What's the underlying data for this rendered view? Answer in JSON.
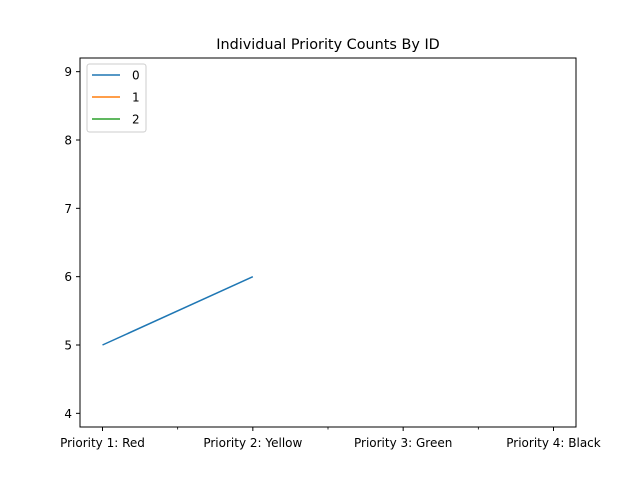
{
  "chart_data": {
    "type": "line",
    "title": "Individual Priority Counts By ID",
    "xlabel": "",
    "ylabel": "",
    "categories": [
      "Priority 1: Red",
      "Priority 2: Yellow",
      "Priority 3: Green",
      "Priority 4: Black"
    ],
    "ylim": [
      3.8,
      9.2
    ],
    "yticks": [
      4,
      5,
      6,
      7,
      8,
      9
    ],
    "grid": false,
    "legend_position": "upper-left",
    "series": [
      {
        "name": "0",
        "color": "#1f77b4",
        "values": [
          5,
          6,
          null,
          null
        ]
      },
      {
        "name": "1",
        "color": "#ff7f0e",
        "values": [
          null,
          null,
          null,
          null
        ]
      },
      {
        "name": "2",
        "color": "#2ca02c",
        "values": [
          null,
          null,
          null,
          null
        ]
      }
    ]
  }
}
